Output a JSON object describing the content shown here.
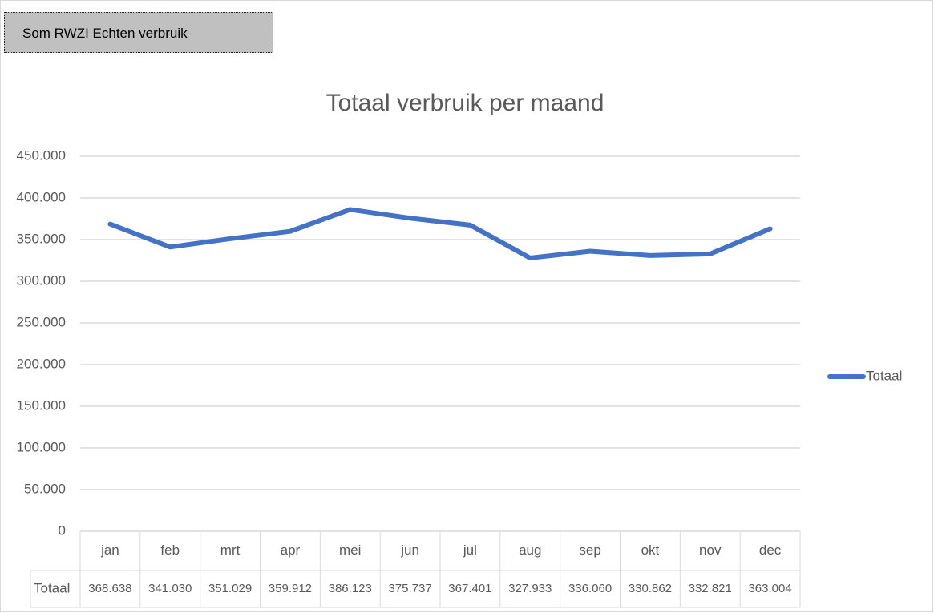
{
  "button": {
    "label": "Som RWZI Echten verbruik"
  },
  "chart_data": {
    "type": "line",
    "title": "Totaal verbruik per maand",
    "categories": [
      "jan",
      "feb",
      "mrt",
      "apr",
      "mei",
      "jun",
      "jul",
      "aug",
      "sep",
      "okt",
      "nov",
      "dec"
    ],
    "series": [
      {
        "name": "Totaal",
        "color": "#4472c4",
        "values": [
          368638,
          341030,
          351029,
          359912,
          386123,
          375737,
          367401,
          327933,
          336060,
          330862,
          332821,
          363004
        ],
        "value_labels": [
          "368.638",
          "341.030",
          "351.029",
          "359.912",
          "386.123",
          "375.737",
          "367.401",
          "327.933",
          "336.060",
          "330.862",
          "332.821",
          "363.004"
        ]
      }
    ],
    "ylim": [
      0,
      450000
    ],
    "yticks": [
      0,
      {
        "value": 50000,
        "label": "50.000"
      },
      {
        "value": 100000,
        "label": "100.000"
      },
      {
        "value": 150000,
        "label": "150.000"
      },
      {
        "value": 200000,
        "label": "200.000"
      },
      {
        "value": 250000,
        "label": "250.000"
      },
      {
        "value": 300000,
        "label": "300.000"
      },
      {
        "value": 350000,
        "label": "350.000"
      },
      {
        "value": 400000,
        "label": "400.000"
      },
      {
        "value": 450000,
        "label": "450.000"
      }
    ],
    "grid": true,
    "legend": "right",
    "data_table": true
  }
}
